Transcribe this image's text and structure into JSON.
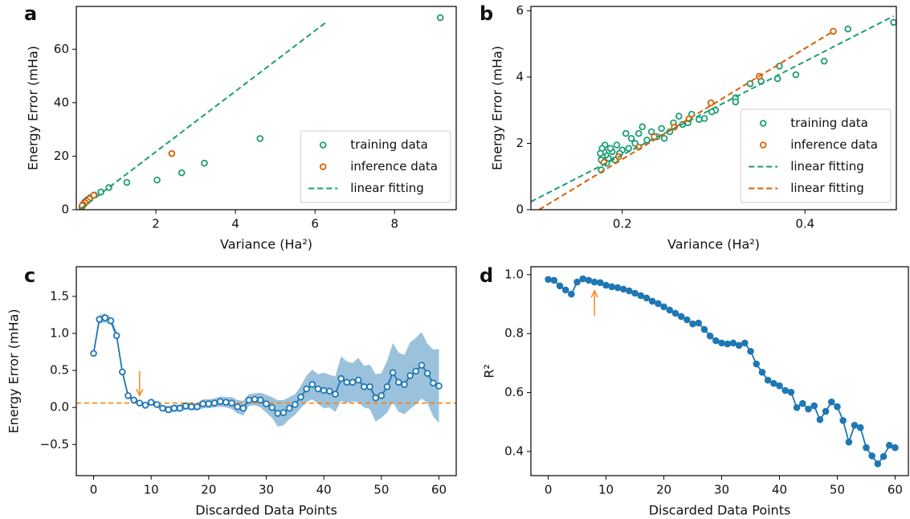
{
  "chart_data": [
    {
      "type": "scatter",
      "panel_label": "a",
      "xlabel": "Variance (Ha²)",
      "ylabel": "Energy Error (mHa)",
      "xlim": [
        0,
        9.55
      ],
      "ylim": [
        0,
        76
      ],
      "xticks": [
        2,
        4,
        6,
        8
      ],
      "yticks": [
        0,
        20,
        40,
        60
      ],
      "legend": "lower right",
      "series": [
        {
          "name": "training data",
          "color": "#1b9e77",
          "marker": "hollow",
          "x": [
            9.15,
            4.62,
            3.22,
            2.65,
            2.03,
            1.27,
            0.82,
            0.62,
            0.45,
            0.35,
            0.28,
            0.22,
            0.18,
            0.15,
            0.14
          ],
          "values": [
            71.8,
            26.6,
            17.4,
            13.8,
            11.1,
            10.2,
            8.3,
            6.6,
            5.5,
            4.5,
            3.8,
            3.0,
            2.2,
            1.5,
            1.0
          ]
        },
        {
          "name": "inference data",
          "color": "#d95f02",
          "marker": "hollow",
          "x": [
            2.4,
            0.44,
            0.33,
            0.27,
            0.22,
            0.18,
            0.15
          ],
          "values": [
            21.0,
            5.4,
            4.1,
            3.2,
            2.6,
            1.8,
            1.5
          ]
        },
        {
          "name": "linear fitting",
          "color": "#1b9e77",
          "line": "dashed",
          "x": [
            0.13,
            6.3
          ],
          "values": [
            0.5,
            70.3
          ]
        }
      ]
    },
    {
      "type": "scatter",
      "panel_label": "b",
      "xlabel": "Variance (Ha²)",
      "ylabel": "Energy Error (mHa)",
      "xlim": [
        0.1,
        0.5
      ],
      "ylim": [
        0,
        6.13
      ],
      "xticks": [
        0.2,
        0.4
      ],
      "yticks": [
        0,
        2,
        4,
        6
      ],
      "legend": "lower right",
      "series": [
        {
          "name": "training data",
          "color": "#1b9e77",
          "marker": "hollow",
          "x": [
            0.497,
            0.447,
            0.421,
            0.39,
            0.372,
            0.37,
            0.352,
            0.34,
            0.324,
            0.324,
            0.302,
            0.298,
            0.29,
            0.284,
            0.276,
            0.272,
            0.266,
            0.262,
            0.256,
            0.252,
            0.246,
            0.243,
            0.238,
            0.232,
            0.227,
            0.222,
            0.218,
            0.214,
            0.21,
            0.207,
            0.204,
            0.2,
            0.197,
            0.194,
            0.192,
            0.189,
            0.187,
            0.185,
            0.183,
            0.182,
            0.181,
            0.18,
            0.179,
            0.178,
            0.178,
            0.177,
            0.177,
            0.176
          ],
          "values": [
            5.65,
            5.45,
            4.48,
            4.07,
            4.33,
            3.95,
            3.87,
            3.8,
            3.38,
            3.25,
            3.0,
            2.95,
            2.75,
            2.72,
            2.88,
            2.62,
            2.57,
            2.82,
            2.62,
            2.35,
            2.15,
            2.45,
            2.2,
            2.35,
            2.1,
            2.5,
            2.3,
            2.0,
            2.15,
            1.85,
            2.3,
            1.8,
            1.7,
            1.95,
            1.5,
            1.75,
            1.85,
            1.55,
            1.4,
            1.65,
            1.95,
            1.75,
            1.45,
            1.6,
            1.85,
            1.2,
            1.5,
            1.7
          ]
        },
        {
          "name": "inference data",
          "color": "#d95f02",
          "marker": "hollow",
          "x": [
            0.431,
            0.35,
            0.297,
            0.273,
            0.257,
            0.235,
            0.218,
            0.196,
            0.18
          ],
          "values": [
            5.38,
            4.02,
            3.22,
            2.74,
            2.49,
            2.2,
            1.89,
            1.6,
            1.43
          ]
        },
        {
          "name": "linear fitting",
          "color": "#1b9e77",
          "line": "dashed",
          "x": [
            0.1,
            0.497
          ],
          "values": [
            0.24,
            5.84
          ]
        },
        {
          "name": "linear fitting",
          "color": "#d95f02",
          "line": "dashed",
          "x": [
            0.109,
            0.431
          ],
          "values": [
            0,
            5.38
          ]
        }
      ]
    },
    {
      "type": "line",
      "panel_label": "c",
      "xlabel": "Discarded Data Points",
      "ylabel": "Energy Error (mHa)",
      "xlim": [
        -3,
        63
      ],
      "ylim": [
        -0.92,
        1.9
      ],
      "xticks": [
        0,
        10,
        20,
        30,
        40,
        50,
        60
      ],
      "yticks": [
        {
          "value": -0.5,
          "label": "−0.5"
        },
        {
          "value": 0,
          "label": "0.0"
        },
        0.5,
        {
          "value": 1,
          "label": "1.0"
        },
        1.5
      ],
      "hline": {
        "value": 0.06,
        "color": "#ff7f0e"
      },
      "arrow": {
        "x": 8,
        "y": [
          0.49,
          0.16
        ],
        "color": "#ff7f0e"
      },
      "series": [
        {
          "color": "#1f77b4",
          "line": "solid",
          "marker": "hollow",
          "x": [
            0,
            1,
            2,
            3,
            4,
            5,
            6,
            7,
            8,
            9,
            10,
            11,
            12,
            13,
            14,
            15,
            16,
            17,
            18,
            19,
            20,
            21,
            22,
            23,
            24,
            25,
            26,
            27,
            28,
            29,
            30,
            31,
            32,
            33,
            34,
            35,
            36,
            37,
            38,
            39,
            40,
            41,
            42,
            43,
            44,
            45,
            46,
            47,
            48,
            49,
            50,
            51,
            52,
            53,
            54,
            55,
            56,
            57,
            58,
            59,
            60
          ],
          "values": [
            0.73,
            1.19,
            1.21,
            1.17,
            0.97,
            0.48,
            0.16,
            0.1,
            0.06,
            0.03,
            0.07,
            0.04,
            -0.01,
            -0.03,
            -0.01,
            -0.01,
            0.02,
            0.01,
            0.01,
            0.05,
            0.05,
            0.06,
            0.08,
            0.07,
            0.06,
            0.01,
            -0.01,
            0.1,
            0.11,
            0.1,
            0.05,
            0,
            -0.08,
            -0.07,
            -0.01,
            0.04,
            0.14,
            0.25,
            0.31,
            0.25,
            0.23,
            0.22,
            0.18,
            0.39,
            0.34,
            0.34,
            0.37,
            0.28,
            0.28,
            0.13,
            0.16,
            0.28,
            0.47,
            0.34,
            0.31,
            0.43,
            0.49,
            0.57,
            0.46,
            0.33,
            0.29
          ],
          "errors": [
            0.04,
            0.06,
            0.06,
            0.05,
            0.05,
            0.04,
            0.03,
            0.03,
            0.03,
            0.03,
            0.04,
            0.04,
            0.04,
            0.05,
            0.05,
            0.05,
            0.05,
            0.05,
            0.05,
            0.06,
            0.06,
            0.06,
            0.07,
            0.07,
            0.08,
            0.09,
            0.1,
            0.08,
            0.08,
            0.1,
            0.12,
            0.14,
            0.18,
            0.17,
            0.15,
            0.14,
            0.15,
            0.18,
            0.2,
            0.2,
            0.24,
            0.22,
            0.24,
            0.3,
            0.28,
            0.26,
            0.3,
            0.28,
            0.3,
            0.32,
            0.3,
            0.35,
            0.4,
            0.4,
            0.4,
            0.45,
            0.45,
            0.45,
            0.4,
            0.45,
            0.5
          ]
        }
      ]
    },
    {
      "type": "line",
      "panel_label": "d",
      "xlabel": "Discarded Data Points",
      "ylabel": "R²",
      "xlim": [
        -3,
        62.3
      ],
      "ylim": [
        0.318,
        1.027
      ],
      "xticks": [
        0,
        10,
        20,
        30,
        40,
        50,
        60
      ],
      "yticks": [
        0.4,
        0.6,
        0.8,
        {
          "value": 1,
          "label": "1.0"
        }
      ],
      "arrow": {
        "x": 8,
        "y": [
          0.86,
          0.945
        ],
        "color": "#ff7f0e"
      },
      "series": [
        {
          "color": "#1f77b4",
          "line": "solid",
          "marker": "filled",
          "x": [
            0,
            1,
            2,
            3,
            4,
            5,
            6,
            7,
            8,
            9,
            10,
            11,
            12,
            13,
            14,
            15,
            16,
            17,
            18,
            19,
            20,
            21,
            22,
            23,
            24,
            25,
            26,
            27,
            28,
            29,
            30,
            31,
            32,
            33,
            34,
            35,
            36,
            37,
            38,
            39,
            40,
            41,
            42,
            43,
            44,
            45,
            46,
            47,
            48,
            49,
            50,
            51,
            52,
            53,
            54,
            55,
            56,
            57,
            58,
            59,
            60
          ],
          "values": [
            0.984,
            0.981,
            0.962,
            0.948,
            0.934,
            0.975,
            0.986,
            0.981,
            0.975,
            0.973,
            0.964,
            0.959,
            0.956,
            0.951,
            0.945,
            0.937,
            0.929,
            0.921,
            0.91,
            0.902,
            0.891,
            0.88,
            0.869,
            0.858,
            0.847,
            0.833,
            0.836,
            0.814,
            0.792,
            0.776,
            0.768,
            0.765,
            0.768,
            0.76,
            0.768,
            0.74,
            0.697,
            0.669,
            0.642,
            0.631,
            0.623,
            0.607,
            0.601,
            0.549,
            0.563,
            0.544,
            0.555,
            0.508,
            0.536,
            0.568,
            0.552,
            0.505,
            0.432,
            0.489,
            0.481,
            0.413,
            0.385,
            0.358,
            0.383,
            0.421,
            0.413
          ]
        }
      ]
    }
  ]
}
